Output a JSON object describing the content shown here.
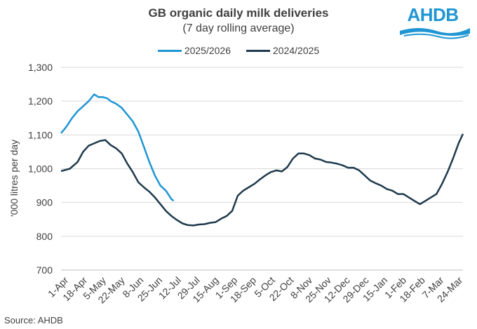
{
  "branding": {
    "logo_text": "AHDB"
  },
  "source": "Source: AHDB",
  "chart_data": {
    "type": "line",
    "title": "GB organic daily milk deliveries",
    "subtitle": "(7 day rolling average)",
    "xlabel": "",
    "ylabel": "'000 litres per day",
    "ylim": [
      700,
      1300
    ],
    "yticks": [
      700,
      800,
      900,
      1000,
      1100,
      1200,
      1300
    ],
    "ytick_labels": [
      "700",
      "800",
      "900",
      "1,000",
      "1,100",
      "1,200",
      "1,300"
    ],
    "xtick_labels": [
      "1-Apr",
      "18-Apr",
      "5-May",
      "22-May",
      "8-Jun",
      "25-Jun",
      "12-Jul",
      "29-Jul",
      "15-Aug",
      "1-Sep",
      "18-Sep",
      "5-Oct",
      "22-Oct",
      "8-Nov",
      "25-Nov",
      "12-Dec",
      "29-Dec",
      "15-Jan",
      "1-Feb",
      "18-Feb",
      "7-Mar",
      "24-Mar"
    ],
    "xtick_days": [
      0,
      17,
      34,
      51,
      68,
      85,
      102,
      119,
      136,
      153,
      170,
      187,
      204,
      221,
      238,
      255,
      272,
      289,
      306,
      323,
      340,
      357
    ],
    "xlim": [
      0,
      364
    ],
    "grid": true,
    "legend_position": "top",
    "series": [
      {
        "name": "2025/2026",
        "color": "#1f96d3",
        "x": [
          0,
          5,
          10,
          15,
          20,
          25,
          30,
          34,
          38,
          42,
          45,
          50,
          55,
          60,
          65,
          70,
          75,
          80,
          85,
          90,
          95,
          100,
          102
        ],
        "y": [
          1105,
          1125,
          1150,
          1170,
          1185,
          1200,
          1220,
          1212,
          1212,
          1208,
          1200,
          1192,
          1180,
          1160,
          1140,
          1110,
          1065,
          1020,
          980,
          950,
          935,
          910,
          905
        ]
      },
      {
        "name": "2024/2025",
        "color": "#1e3a4c",
        "x": [
          0,
          8,
          15,
          20,
          25,
          30,
          35,
          40,
          45,
          50,
          55,
          60,
          65,
          70,
          75,
          80,
          85,
          90,
          95,
          100,
          105,
          110,
          115,
          120,
          125,
          130,
          135,
          140,
          145,
          150,
          155,
          160,
          165,
          170,
          175,
          180,
          185,
          190,
          195,
          200,
          205,
          210,
          215,
          220,
          225,
          230,
          235,
          240,
          245,
          250,
          255,
          260,
          265,
          270,
          275,
          280,
          285,
          290,
          295,
          300,
          305,
          310,
          315,
          320,
          325,
          330,
          335,
          340,
          345,
          350,
          355,
          360,
          364
        ],
        "y": [
          993,
          1000,
          1020,
          1050,
          1068,
          1075,
          1082,
          1085,
          1070,
          1060,
          1045,
          1015,
          990,
          960,
          945,
          932,
          915,
          895,
          875,
          860,
          848,
          838,
          833,
          832,
          835,
          836,
          840,
          842,
          852,
          860,
          875,
          920,
          935,
          945,
          955,
          968,
          980,
          990,
          995,
          992,
          1005,
          1030,
          1045,
          1045,
          1040,
          1030,
          1027,
          1020,
          1018,
          1015,
          1010,
          1003,
          1003,
          995,
          980,
          965,
          957,
          950,
          940,
          935,
          925,
          925,
          915,
          905,
          895,
          905,
          915,
          925,
          955,
          990,
          1030,
          1075,
          1103
        ]
      }
    ]
  }
}
